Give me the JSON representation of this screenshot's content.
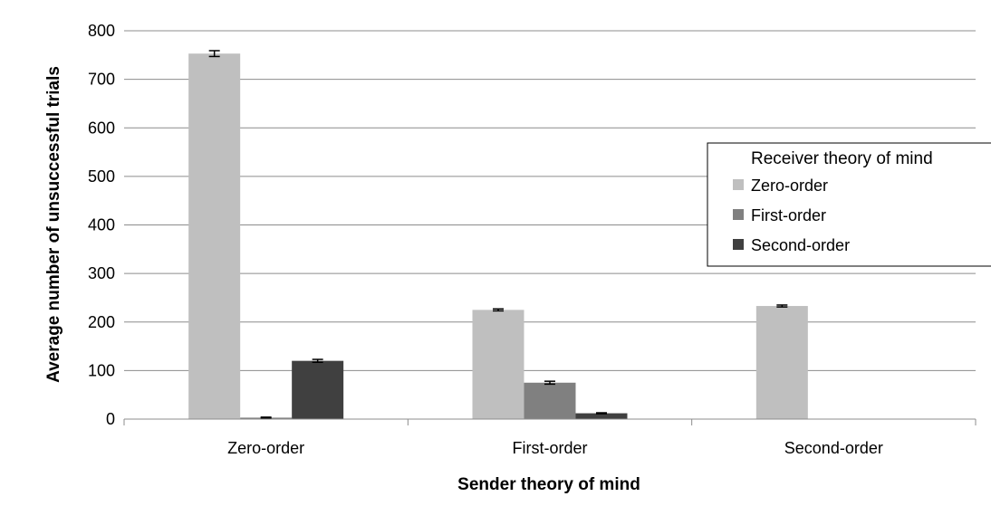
{
  "chart_data": {
    "type": "bar",
    "title": "",
    "xlabel": "Sender theory of mind",
    "ylabel": "Average number of unsuccessful trials",
    "categories": [
      "Zero-order",
      "First-order",
      "Second-order"
    ],
    "ylim": [
      0,
      800
    ],
    "yticks": [
      0,
      100,
      200,
      300,
      400,
      500,
      600,
      700,
      800
    ],
    "grid": true,
    "legend": {
      "title": "Receiver theory of mind",
      "position": "right"
    },
    "series": [
      {
        "name": "Zero-order",
        "color": "#bfbfbf",
        "values": [
          753,
          225,
          233
        ],
        "errors": [
          6,
          2,
          2
        ]
      },
      {
        "name": "First-order",
        "color": "#808080",
        "values": [
          3,
          75,
          null
        ],
        "errors": [
          1,
          3,
          null
        ]
      },
      {
        "name": "Second-order",
        "color": "#404040",
        "values": [
          120,
          12,
          null
        ],
        "errors": [
          3,
          1,
          null
        ]
      }
    ]
  }
}
